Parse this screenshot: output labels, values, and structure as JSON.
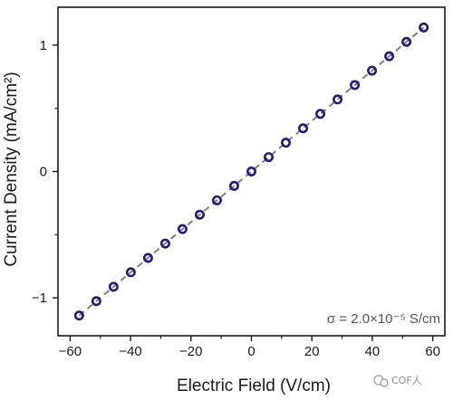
{
  "chart_data": {
    "type": "scatter",
    "xlabel": "Electric Field (V/cm)",
    "ylabel": "Current Density (mA/cm²)",
    "xlim": [
      -64,
      64
    ],
    "ylim": [
      -1.3,
      1.3
    ],
    "x_ticks": [
      -60,
      -40,
      -20,
      0,
      20,
      40,
      60
    ],
    "x_tick_labels": [
      "−60",
      "−40",
      "−20",
      "0",
      "20",
      "40",
      "60"
    ],
    "y_ticks": [
      -1,
      0,
      1
    ],
    "y_tick_labels": [
      "−1",
      "0",
      "1"
    ],
    "y_minor_ticks": [
      -0.5,
      0.5
    ],
    "grid": false,
    "annotation": "σ = 2.0×10⁻⁵ S/cm",
    "fit_line": {
      "from": [
        -57,
        -1.14
      ],
      "to": [
        57,
        1.14
      ],
      "style": "dashed",
      "color": "#7f7f7f"
    },
    "series": [
      {
        "marker": "open-circle",
        "color": "#1f1f7a",
        "points": [
          [
            -57,
            -1.14
          ],
          [
            -51.3,
            -1.026
          ],
          [
            -45.6,
            -0.912
          ],
          [
            -39.9,
            -0.798
          ],
          [
            -34.2,
            -0.684
          ],
          [
            -28.5,
            -0.57
          ],
          [
            -22.8,
            -0.456
          ],
          [
            -17.1,
            -0.342
          ],
          [
            -11.4,
            -0.228
          ],
          [
            -5.7,
            -0.114
          ],
          [
            0,
            0
          ],
          [
            5.7,
            0.114
          ],
          [
            11.4,
            0.228
          ],
          [
            17.1,
            0.342
          ],
          [
            22.8,
            0.456
          ],
          [
            28.5,
            0.57
          ],
          [
            34.2,
            0.684
          ],
          [
            39.9,
            0.798
          ],
          [
            45.6,
            0.912
          ],
          [
            51.3,
            1.026
          ],
          [
            57,
            1.14
          ]
        ]
      }
    ]
  },
  "watermark": {
    "text": "COF人",
    "icon": "wechat-icon"
  }
}
